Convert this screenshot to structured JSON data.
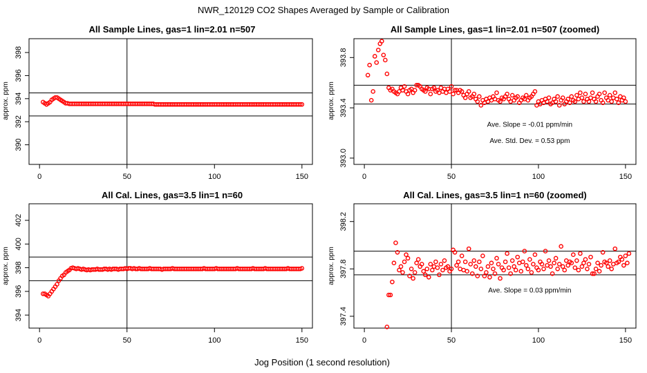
{
  "figure": {
    "title": "NWR_120129  CO2 Shapes Averaged by Sample or Calibration",
    "xlabel": "Jog Position (1 second resolution)"
  },
  "chart_data": [
    {
      "type": "scatter",
      "title": "All Sample Lines, gas=1 lin=2.01 n=507",
      "ylabel": "approx. ppm",
      "xlim": [
        -6,
        156
      ],
      "ylim": [
        388.3,
        399.2
      ],
      "xticks": [
        0,
        50,
        100,
        150
      ],
      "yticks": [
        390,
        392,
        394,
        396,
        398
      ],
      "vline": 50,
      "hlines": [
        394.5,
        392.5
      ],
      "annotations": [],
      "series": [
        {
          "x_start": 2,
          "x_step": 1,
          "values": [
            393.7,
            393.6,
            393.5,
            393.6,
            393.7,
            393.9,
            394,
            394.1,
            394.1,
            394,
            393.9,
            393.8,
            393.7,
            393.6,
            393.6,
            393.55,
            393.55,
            393.55,
            393.55,
            393.55,
            393.55,
            393.55,
            393.55,
            393.55,
            393.55,
            393.55,
            393.55,
            393.55,
            393.55,
            393.55,
            393.55,
            393.55,
            393.55,
            393.55,
            393.55,
            393.55,
            393.55,
            393.55,
            393.55,
            393.55,
            393.55,
            393.55,
            393.55,
            393.55,
            393.55,
            393.55,
            393.55,
            393.55,
            393.55,
            393.55,
            393.55,
            393.55,
            393.55,
            393.55,
            393.55,
            393.55,
            393.55,
            393.55,
            393.55,
            393.55,
            393.55,
            393.55,
            393.55,
            393.55,
            393.5,
            393.5,
            393.5,
            393.5,
            393.5,
            393.5,
            393.5,
            393.5,
            393.5,
            393.5,
            393.5,
            393.5,
            393.5,
            393.5,
            393.5,
            393.5,
            393.5,
            393.5,
            393.5,
            393.5,
            393.5,
            393.5,
            393.5,
            393.5,
            393.5,
            393.5,
            393.5,
            393.5,
            393.5,
            393.5,
            393.5,
            393.5,
            393.5,
            393.5,
            393.5,
            393.5,
            393.5,
            393.5,
            393.5,
            393.5,
            393.5,
            393.5,
            393.5,
            393.5,
            393.5,
            393.5,
            393.5,
            393.5,
            393.5,
            393.5,
            393.5,
            393.5,
            393.5,
            393.5,
            393.5,
            393.5,
            393.5,
            393.5,
            393.5,
            393.5,
            393.5,
            393.5,
            393.5,
            393.5,
            393.5,
            393.5,
            393.5,
            393.5,
            393.5,
            393.5,
            393.5,
            393.5,
            393.5,
            393.5,
            393.5,
            393.5,
            393.5,
            393.5,
            393.5,
            393.5,
            393.5,
            393.5,
            393.5,
            393.5,
            393.5
          ]
        }
      ]
    },
    {
      "type": "scatter",
      "title": "All Sample Lines, gas=1 lin=2.01 n=507 (zoomed)",
      "ylabel": "approx. ppm",
      "xlim": [
        -6,
        156
      ],
      "ylim": [
        392.95,
        393.95
      ],
      "xticks": [
        0,
        50,
        100,
        150
      ],
      "yticks": [
        393.0,
        393.4,
        393.8
      ],
      "ytick_labels": [
        "393.0",
        "393.4",
        "393.8"
      ],
      "vline": 50,
      "hlines": [
        393.58,
        393.43
      ],
      "annotations": [
        {
          "text": "Ave. Slope =  -0.01  ppm/min",
          "x": 95,
          "y": 393.25
        },
        {
          "text": "Ave. Std. Dev. =  0.53  ppm",
          "x": 95,
          "y": 393.12
        }
      ],
      "series": [
        {
          "x_start": 2,
          "x_step": 1,
          "values": [
            393.66,
            393.74,
            393.46,
            393.53,
            393.81,
            393.76,
            393.86,
            393.91,
            393.93,
            393.82,
            393.78,
            393.67,
            393.56,
            393.54,
            393.55,
            393.53,
            393.52,
            393.51,
            393.53,
            393.56,
            393.54,
            393.57,
            393.53,
            393.51,
            393.54,
            393.55,
            393.52,
            393.54,
            393.58,
            393.58,
            393.57,
            393.55,
            393.54,
            393.53,
            393.56,
            393.55,
            393.51,
            393.55,
            393.56,
            393.53,
            393.54,
            393.52,
            393.56,
            393.53,
            393.55,
            393.52,
            393.55,
            393.53,
            393.57,
            393.51,
            393.54,
            393.54,
            393.52,
            393.54,
            393.53,
            393.5,
            393.48,
            393.51,
            393.53,
            393.48,
            393.49,
            393.51,
            393.47,
            393.45,
            393.49,
            393.42,
            393.46,
            393.44,
            393.47,
            393.45,
            393.48,
            393.46,
            393.49,
            393.47,
            393.52,
            393.46,
            393.45,
            393.48,
            393.47,
            393.49,
            393.51,
            393.47,
            393.45,
            393.5,
            393.46,
            393.48,
            393.49,
            393.44,
            393.46,
            393.48,
            393.47,
            393.5,
            393.46,
            393.48,
            393.49,
            393.51,
            393.53,
            393.42,
            393.45,
            393.43,
            393.46,
            393.44,
            393.47,
            393.45,
            393.48,
            393.43,
            393.44,
            393.47,
            393.45,
            393.49,
            393.42,
            393.46,
            393.48,
            393.43,
            393.45,
            393.47,
            393.44,
            393.49,
            393.46,
            393.45,
            393.5,
            393.47,
            393.52,
            393.48,
            393.45,
            393.51,
            393.47,
            393.45,
            393.48,
            393.52,
            393.47,
            393.45,
            393.49,
            393.51,
            393.46,
            393.44,
            393.52,
            393.48,
            393.46,
            393.5,
            393.45,
            393.48,
            393.52,
            393.47,
            393.44,
            393.49,
            393.46,
            393.48,
            393.45
          ]
        }
      ]
    },
    {
      "type": "scatter",
      "title": "All Cal. Lines, gas=3.5 lin=1 n=60",
      "ylabel": "approx. ppm",
      "xlim": [
        -6,
        156
      ],
      "ylim": [
        392.9,
        403.4
      ],
      "xticks": [
        0,
        50,
        100,
        150
      ],
      "yticks": [
        394,
        396,
        398,
        400,
        402
      ],
      "vline": 50,
      "hlines": [
        398.9,
        396.9
      ],
      "annotations": [],
      "series": [
        {
          "x_start": 2,
          "x_step": 1,
          "values": [
            395.8,
            395.8,
            395.7,
            395.6,
            395.8,
            396,
            396.2,
            396.4,
            396.6,
            396.9,
            397.1,
            397.3,
            397.4,
            397.6,
            397.7,
            397.8,
            397.95,
            398,
            397.95,
            397.9,
            397.95,
            397.9,
            397.85,
            397.9,
            397.85,
            397.8,
            397.85,
            397.8,
            397.85,
            397.85,
            397.85,
            397.9,
            397.85,
            397.85,
            397.85,
            397.9,
            397.9,
            397.85,
            397.9,
            397.85,
            397.9,
            397.9,
            397.9,
            397.85,
            397.9,
            397.9,
            397.9,
            397.95,
            397.9,
            397.95,
            397.95,
            397.9,
            397.95,
            397.9,
            397.9,
            397.95,
            397.9,
            397.9,
            397.9,
            397.9,
            397.9,
            397.95,
            397.9,
            397.9,
            397.9,
            397.9,
            397.9,
            397.9,
            397.85,
            397.9,
            397.9,
            397.9,
            397.9,
            397.9,
            397.95,
            397.9,
            397.9,
            397.9,
            397.9,
            397.9,
            397.9,
            397.9,
            397.9,
            397.9,
            397.9,
            397.9,
            397.9,
            397.9,
            397.9,
            397.9,
            397.9,
            397.9,
            397.95,
            397.9,
            397.9,
            397.9,
            397.9,
            397.9,
            397.9,
            397.95,
            397.9,
            397.9,
            397.9,
            397.9,
            397.9,
            397.9,
            397.9,
            397.9,
            397.9,
            397.9,
            397.9,
            397.95,
            397.9,
            397.9,
            397.9,
            397.9,
            397.9,
            397.9,
            397.9,
            397.9,
            397.95,
            397.9,
            397.9,
            397.9,
            397.9,
            397.9,
            397.9,
            397.95,
            397.9,
            397.9,
            397.9,
            397.9,
            397.9,
            397.9,
            397.9,
            397.9,
            397.9,
            397.9,
            397.9,
            397.9,
            397.95,
            397.9,
            397.9,
            397.9,
            397.9,
            397.9,
            397.9,
            397.9,
            397.95
          ]
        }
      ]
    },
    {
      "type": "scatter",
      "title": "All Cal. Lines, gas=3.5 lin=1 n=60 (zoomed)",
      "ylabel": "approx. ppm",
      "xlim": [
        -6,
        156
      ],
      "ylim": [
        397.3,
        398.35
      ],
      "xticks": [
        0,
        50,
        100,
        150
      ],
      "yticks": [
        397.4,
        397.8,
        398.2
      ],
      "ytick_labels": [
        "397.4",
        "397.8",
        "398.2"
      ],
      "vline": 50,
      "hlines": [
        397.95,
        397.75
      ],
      "annotations": [
        {
          "text": "Ave. Slope =  0.03  ppm/min",
          "x": 95,
          "y": 397.6
        }
      ],
      "series": [
        {
          "x_start": 13,
          "x_step": 1,
          "values": [
            397.31,
            397.58,
            397.58,
            397.69,
            397.85,
            398.02,
            397.94,
            397.79,
            397.82,
            397.77,
            397.86,
            397.92,
            397.89,
            397.74,
            397.8,
            397.72,
            397.77,
            397.85,
            397.88,
            397.82,
            397.84,
            397.78,
            397.75,
            397.8,
            397.73,
            397.84,
            397.79,
            397.82,
            397.86,
            397.81,
            397.75,
            397.84,
            397.79,
            397.87,
            397.81,
            397.82,
            397.78,
            397.8,
            397.96,
            397.94,
            397.83,
            397.86,
            397.8,
            397.91,
            397.79,
            397.86,
            397.78,
            397.97,
            397.84,
            397.76,
            397.87,
            397.82,
            397.74,
            397.86,
            397.8,
            397.91,
            397.74,
            397.77,
            397.82,
            397.73,
            397.85,
            397.8,
            397.76,
            397.89,
            397.84,
            397.72,
            397.81,
            397.79,
            397.86,
            397.93,
            397.81,
            397.76,
            397.87,
            397.82,
            397.79,
            397.9,
            397.85,
            397.78,
            397.86,
            397.95,
            397.83,
            397.8,
            397.88,
            397.77,
            397.84,
            397.92,
            397.81,
            397.79,
            397.86,
            397.84,
            397.8,
            397.95,
            397.83,
            397.87,
            397.82,
            397.76,
            397.85,
            397.89,
            397.8,
            397.84,
            397.99,
            397.82,
            397.79,
            397.87,
            397.83,
            397.86,
            397.85,
            397.92,
            397.81,
            397.87,
            397.79,
            397.93,
            397.82,
            397.85,
            397.88,
            397.8,
            397.84,
            397.9,
            397.76,
            397.76,
            397.8,
            397.85,
            397.78,
            397.83,
            397.94,
            397.86,
            397.85,
            397.82,
            397.87,
            397.8,
            397.84,
            397.97,
            397.85,
            397.86,
            397.9,
            397.88,
            397.83,
            397.91,
            397.85,
            397.93
          ]
        }
      ]
    }
  ]
}
